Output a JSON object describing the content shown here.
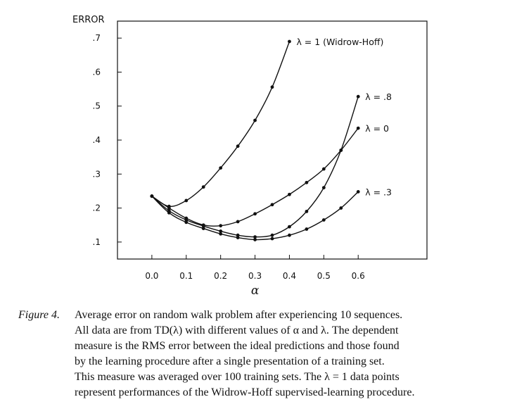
{
  "chart_data": {
    "type": "line",
    "ylabel": "ERROR",
    "xlabel": "α",
    "xlim": [
      -0.1,
      0.8
    ],
    "ylim": [
      0.05,
      0.75
    ],
    "xticks": [
      0.0,
      0.1,
      0.2,
      0.3,
      0.4,
      0.5,
      0.6
    ],
    "xtick_labels": [
      "0.0",
      "0.1",
      "0.2",
      "0.3",
      "0.4",
      "0.5",
      "0.6"
    ],
    "yticks": [
      0.1,
      0.2,
      0.3,
      0.4,
      0.5,
      0.6,
      0.7
    ],
    "ytick_labels": [
      ".1",
      ".2",
      ".3",
      ".4",
      ".5",
      ".6",
      ".7"
    ],
    "series": [
      {
        "name": "λ = 1 (Widrow-Hoff)",
        "x": [
          0.0,
          0.05,
          0.1,
          0.15,
          0.2,
          0.25,
          0.3,
          0.35,
          0.4
        ],
        "y": [
          0.235,
          0.205,
          0.222,
          0.262,
          0.318,
          0.382,
          0.458,
          0.556,
          0.69
        ]
      },
      {
        "name": "λ = 0",
        "x": [
          0.0,
          0.05,
          0.1,
          0.15,
          0.2,
          0.25,
          0.3,
          0.35,
          0.4,
          0.45,
          0.5,
          0.55,
          0.6
        ],
        "y": [
          0.235,
          0.2,
          0.17,
          0.15,
          0.148,
          0.16,
          0.183,
          0.21,
          0.24,
          0.275,
          0.315,
          0.37,
          0.435
        ]
      },
      {
        "name": "λ = .8",
        "x": [
          0.0,
          0.05,
          0.1,
          0.15,
          0.2,
          0.25,
          0.3,
          0.35,
          0.4,
          0.45,
          0.5,
          0.55,
          0.6
        ],
        "y": [
          0.235,
          0.192,
          0.165,
          0.147,
          0.132,
          0.12,
          0.115,
          0.12,
          0.145,
          0.19,
          0.26,
          0.37,
          0.528
        ]
      },
      {
        "name": "λ = .3",
        "x": [
          0.0,
          0.05,
          0.1,
          0.15,
          0.2,
          0.25,
          0.3,
          0.35,
          0.4,
          0.45,
          0.5,
          0.55,
          0.6
        ],
        "y": [
          0.235,
          0.186,
          0.158,
          0.14,
          0.124,
          0.113,
          0.107,
          0.11,
          0.12,
          0.138,
          0.165,
          0.2,
          0.248
        ]
      }
    ]
  },
  "caption": {
    "label": "Figure 4.",
    "lines": [
      "Average error on random walk problem after experiencing 10 sequences.",
      "All data are from TD(λ) with different values of α and λ. The dependent",
      "measure is the RMS error between the ideal predictions and those found",
      "by the learning procedure after a single presentation of a training set.",
      "This measure was averaged over 100 training sets. The λ = 1 data points",
      "represent performances of the Widrow-Hoff supervised-learning procedure."
    ]
  }
}
